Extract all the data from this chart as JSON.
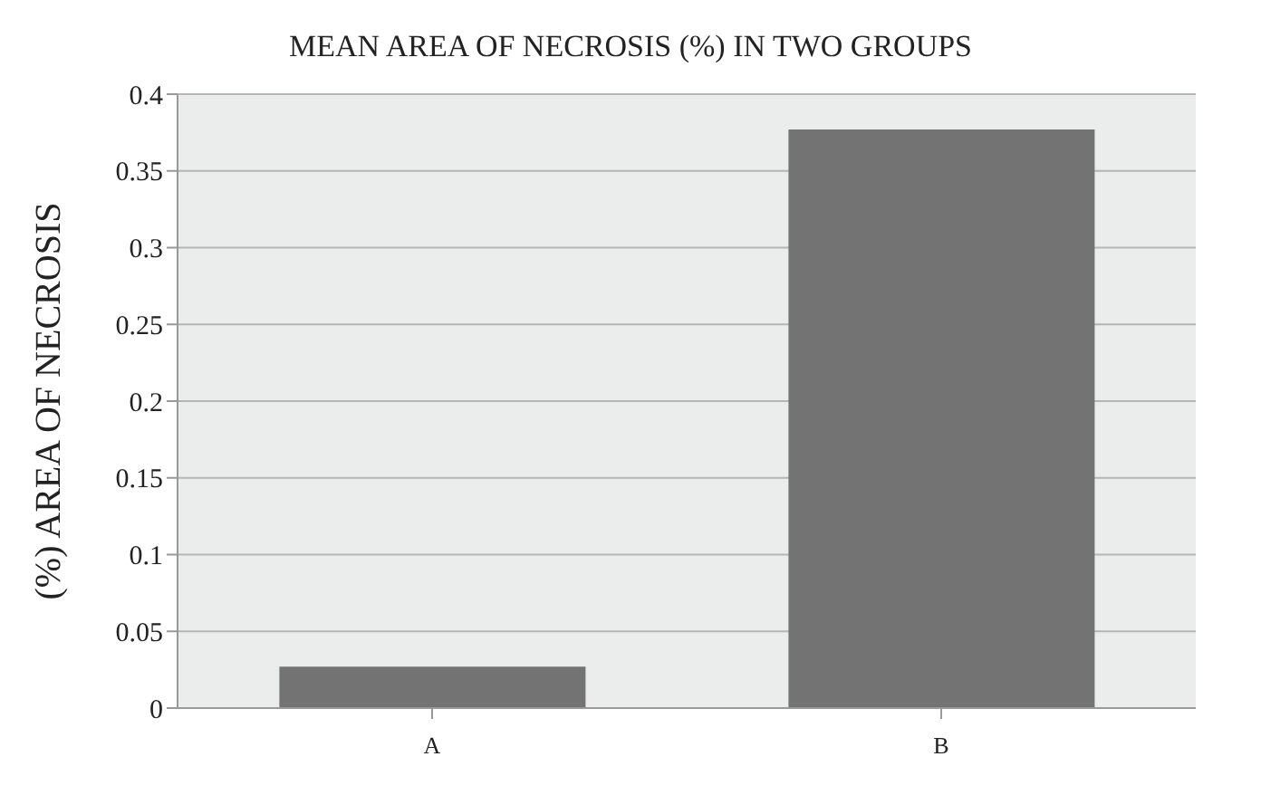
{
  "chart_data": {
    "type": "bar",
    "title": "MEAN AREA OF NECROSIS (%) IN TWO GROUPS",
    "ylabel": "(%) AREA OF NECROSIS",
    "categories": [
      "A",
      "B"
    ],
    "series": [
      {
        "color": "#737373",
        "values": [
          0.027,
          0.377
        ]
      }
    ],
    "ylim": [
      0,
      0.4
    ],
    "yticks": [
      0,
      0.05,
      0.1,
      0.15,
      0.2,
      0.25,
      0.3,
      0.35,
      0.4
    ],
    "grid": "y"
  }
}
